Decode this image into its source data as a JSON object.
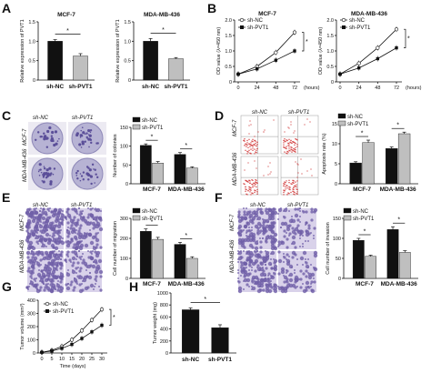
{
  "panels": {
    "A": "A",
    "B": "B",
    "C": "C",
    "D": "D",
    "E": "E",
    "F": "F",
    "G": "G",
    "H": "H"
  },
  "groups": {
    "nc": "sh-NC",
    "pvt": "sh-PVT1"
  },
  "cells": {
    "mcf": "MCF-7",
    "mda": "MDA-MB-436"
  },
  "colors": {
    "black": "#111111",
    "grey": "#bfbfbf",
    "micro_purple": "#6f5fa8",
    "facs_red": "#d23c3c"
  },
  "chart_data": [
    {
      "id": "A1",
      "type": "bar",
      "title": "MCF-7",
      "ylabel": "Relative expression of PVT1",
      "categories": [
        "sh-NC",
        "sh-PVT1"
      ],
      "values": [
        1.0,
        0.62
      ],
      "errors": [
        0.04,
        0.06
      ],
      "ylim": [
        0,
        1.5
      ],
      "yticks": [
        "0",
        "0.5",
        "1.0",
        "1.5"
      ],
      "sig": "*"
    },
    {
      "id": "A2",
      "type": "bar",
      "title": "MDA-MB-436",
      "ylabel": "Relative expression of PVT1",
      "categories": [
        "sh-NC",
        "sh-PVT1"
      ],
      "values": [
        1.0,
        0.55
      ],
      "errors": [
        0.07,
        0.03
      ],
      "ylim": [
        0,
        1.5
      ],
      "yticks": [
        "0",
        "0.5",
        "1.0",
        "1.5"
      ],
      "sig": "*"
    },
    {
      "id": "B1",
      "type": "line",
      "title": "MCF-7",
      "ylabel": "OD value (λ=450 nm)",
      "xlabel": "(hours)",
      "x": [
        0,
        24,
        48,
        72
      ],
      "xticks": [
        "0",
        "24",
        "48",
        "72"
      ],
      "ylim": [
        0,
        2.0
      ],
      "yticks": [
        "0",
        "0.5",
        "1.0",
        "1.5",
        "2.0"
      ],
      "series": [
        {
          "name": "sh-NC",
          "values": [
            0.25,
            0.5,
            0.95,
            1.6
          ]
        },
        {
          "name": "sh-PVT1",
          "values": [
            0.25,
            0.42,
            0.7,
            1.0
          ]
        }
      ],
      "sig": "*"
    },
    {
      "id": "B2",
      "type": "line",
      "title": "MDA-MB-436",
      "ylabel": "OD value (λ=450 nm)",
      "xlabel": "(hours)",
      "x": [
        0,
        24,
        48,
        72
      ],
      "xticks": [
        "0",
        "24",
        "48",
        "72"
      ],
      "ylim": [
        0,
        2.0
      ],
      "yticks": [
        "0",
        "0.5",
        "1.0",
        "1.5",
        "2.0"
      ],
      "series": [
        {
          "name": "sh-NC",
          "values": [
            0.25,
            0.6,
            1.1,
            1.7
          ]
        },
        {
          "name": "sh-PVT1",
          "values": [
            0.25,
            0.45,
            0.75,
            1.1
          ]
        }
      ],
      "sig": "*"
    },
    {
      "id": "C",
      "type": "bar",
      "ylabel": "Number of colonies",
      "categories": [
        "MCF-7",
        "MDA-MB-436"
      ],
      "series": [
        {
          "name": "sh-NC",
          "values": [
            102,
            78
          ],
          "errors": [
            4,
            5
          ]
        },
        {
          "name": "sh-PVT1",
          "values": [
            55,
            42
          ],
          "errors": [
            4,
            3
          ]
        }
      ],
      "ylim": [
        0,
        150
      ],
      "yticks": [
        "0",
        "50",
        "100",
        "150"
      ],
      "sig": [
        "*",
        "*"
      ]
    },
    {
      "id": "D",
      "type": "bar",
      "ylabel": "Apoptosis rate (%)",
      "categories": [
        "MCF-7",
        "MDA-MB-436"
      ],
      "series": [
        {
          "name": "sh-NC",
          "values": [
            5.2,
            8.8
          ],
          "errors": [
            0.3,
            0.4
          ]
        },
        {
          "name": "sh-PVT1",
          "values": [
            10.3,
            12.5
          ],
          "errors": [
            0.6,
            0.4
          ]
        }
      ],
      "ylim": [
        0,
        15
      ],
      "yticks": [
        "0",
        "5",
        "10",
        "15"
      ],
      "sig": [
        "*",
        "*"
      ]
    },
    {
      "id": "E",
      "type": "bar",
      "ylabel": "Cell number of migration",
      "categories": [
        "MCF-7",
        "MDA-MB-436"
      ],
      "series": [
        {
          "name": "sh-NC",
          "values": [
            235,
            170
          ],
          "errors": [
            12,
            10
          ]
        },
        {
          "name": "sh-PVT1",
          "values": [
            195,
            100
          ],
          "errors": [
            10,
            8
          ]
        }
      ],
      "ylim": [
        0,
        300
      ],
      "yticks": [
        "0",
        "100",
        "200",
        "300"
      ],
      "sig": [
        "*",
        "*"
      ]
    },
    {
      "id": "F",
      "type": "bar",
      "ylabel": "Cell number of invasion",
      "categories": [
        "MCF-7",
        "MDA-MB-436"
      ],
      "series": [
        {
          "name": "sh-NC",
          "values": [
            95,
            122
          ],
          "errors": [
            5,
            7
          ]
        },
        {
          "name": "sh-PVT1",
          "values": [
            55,
            65
          ],
          "errors": [
            3,
            4
          ]
        }
      ],
      "ylim": [
        0,
        150
      ],
      "yticks": [
        "0",
        "50",
        "100",
        "150"
      ],
      "sig": [
        "*",
        "*"
      ]
    },
    {
      "id": "G",
      "type": "line",
      "ylabel": "Tumor volume (mm³)",
      "xlabel": "Time (days)",
      "x": [
        0,
        5,
        10,
        15,
        20,
        25,
        30
      ],
      "xticks": [
        "0",
        "5",
        "10",
        "15",
        "20",
        "25",
        "30"
      ],
      "ylim": [
        0,
        400
      ],
      "yticks": [
        "0",
        "100",
        "200",
        "300",
        "400"
      ],
      "series": [
        {
          "name": "sh-NC",
          "values": [
            5,
            20,
            50,
            100,
            170,
            250,
            330
          ]
        },
        {
          "name": "sh-PVT1",
          "values": [
            5,
            15,
            35,
            65,
            110,
            160,
            210
          ]
        }
      ],
      "sig": "*"
    },
    {
      "id": "H",
      "type": "bar",
      "ylabel": "Tumor weight (mg)",
      "categories": [
        "sh-NC",
        "sh-PVT1"
      ],
      "values": [
        720,
        420
      ],
      "errors": [
        30,
        50
      ],
      "ylim": [
        0,
        1000
      ],
      "yticks": [
        "0",
        "200",
        "400",
        "600",
        "800",
        "1000"
      ],
      "sig": "*"
    }
  ]
}
